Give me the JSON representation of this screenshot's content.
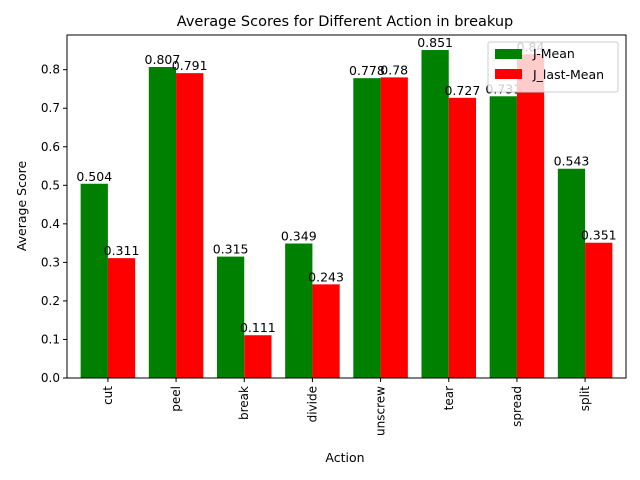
{
  "chart_data": {
    "type": "bar",
    "title": "Average Scores for Different Action in breakup",
    "xlabel": "Action",
    "ylabel": "Average Score",
    "categories": [
      "cut",
      "peel",
      "break",
      "divide",
      "unscrew",
      "tear",
      "spread",
      "split"
    ],
    "series": [
      {
        "name": "J-Mean",
        "color": "#008000",
        "values": [
          0.504,
          0.807,
          0.315,
          0.349,
          0.778,
          0.851,
          0.731,
          0.543
        ],
        "labels": [
          "0.504",
          "0.807",
          "0.315",
          "0.349",
          "0.778",
          "0.851",
          "0.731",
          "0.543"
        ]
      },
      {
        "name": "J_last-Mean",
        "color": "#ff0000",
        "values": [
          0.311,
          0.791,
          0.111,
          0.243,
          0.78,
          0.727,
          0.84,
          0.351
        ],
        "labels": [
          "0.311",
          "0.791",
          "0.111",
          "0.243",
          "0.78",
          "0.727",
          "0.84",
          "0.351"
        ]
      }
    ],
    "ylim": [
      0,
      0.89
    ],
    "yticks": [
      0.0,
      0.1,
      0.2,
      0.3,
      0.4,
      0.5,
      0.6,
      0.7,
      0.8
    ],
    "ytick_labels": [
      "0.0",
      "0.1",
      "0.2",
      "0.3",
      "0.4",
      "0.5",
      "0.6",
      "0.7",
      "0.8"
    ],
    "grid": false,
    "legend_position": "top-right"
  }
}
